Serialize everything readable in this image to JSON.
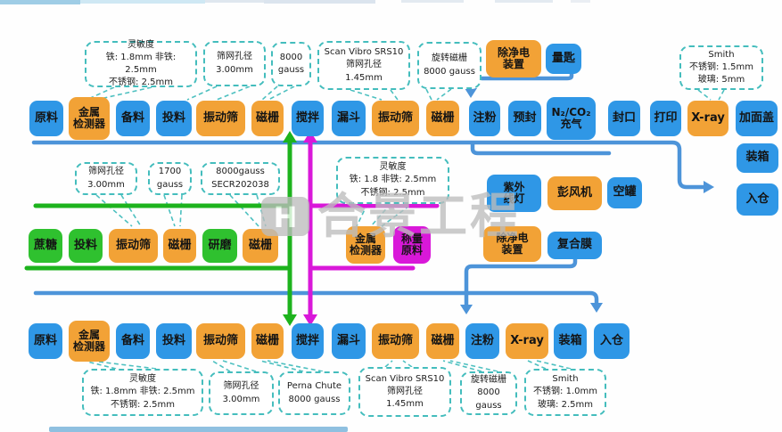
{
  "diagram_title": "",
  "colors": {
    "box_blue": "#2f97e6",
    "box_orange": "#f2a236",
    "box_green": "#2fc12f",
    "box_magenta": "#d918d9",
    "line_blue": "#4d94d9",
    "line_green": "#1db31d",
    "line_magenta": "#d918d9",
    "callout_teal": "#44bdbd",
    "watermark_gray": "#bdbdbd"
  },
  "flows": {
    "top": {
      "boxes": [
        {
          "label": "原料",
          "color": "blue"
        },
        {
          "label": "金属\n检测器",
          "color": "orange"
        },
        {
          "label": "备料",
          "color": "blue"
        },
        {
          "label": "投料",
          "color": "blue"
        },
        {
          "label": "振动筛",
          "color": "orange"
        },
        {
          "label": "磁栅",
          "color": "orange"
        },
        {
          "label": "搅拌",
          "color": "blue"
        },
        {
          "label": "漏斗",
          "color": "blue"
        },
        {
          "label": "振动筛",
          "color": "orange"
        },
        {
          "label": "磁栅",
          "color": "orange"
        },
        {
          "label": "注粉",
          "color": "blue"
        },
        {
          "label": "预封",
          "color": "blue"
        },
        {
          "label": "N₂/CO₂\n充气",
          "color": "blue"
        },
        {
          "label": "封口",
          "color": "blue"
        },
        {
          "label": "打印",
          "color": "blue"
        },
        {
          "label": "X-ray",
          "color": "orange"
        },
        {
          "label": "加面盖",
          "color": "blue"
        }
      ]
    },
    "right_column": {
      "boxes": [
        {
          "label": "装箱",
          "color": "blue"
        },
        {
          "label": "入仓",
          "color": "blue"
        }
      ]
    },
    "top_accessories": {
      "boxes": [
        {
          "label": "除净电\n装置",
          "color": "orange"
        },
        {
          "label": "量匙",
          "color": "blue"
        }
      ]
    },
    "middle": {
      "boxes": [
        {
          "label": "蔗糖",
          "color": "green"
        },
        {
          "label": "投料",
          "color": "green"
        },
        {
          "label": "振动筛",
          "color": "orange"
        },
        {
          "label": "磁栅",
          "color": "orange"
        },
        {
          "label": "研磨",
          "color": "green"
        },
        {
          "label": "磁栅",
          "color": "orange"
        },
        {
          "label": "金属\n检测器",
          "color": "orange"
        },
        {
          "label": "称量\n原料",
          "color": "magenta"
        }
      ]
    },
    "middle_right_top": {
      "boxes": [
        {
          "label": "紫外\n线灯",
          "color": "blue"
        },
        {
          "label": "彭风机",
          "color": "orange"
        },
        {
          "label": "空罐",
          "color": "blue"
        }
      ]
    },
    "middle_right_bottom": {
      "boxes": [
        {
          "label": "除净电\n装置",
          "color": "orange"
        },
        {
          "label": "复合膜",
          "color": "blue"
        }
      ]
    },
    "bottom": {
      "boxes": [
        {
          "label": "原料",
          "color": "blue"
        },
        {
          "label": "金属\n检测器",
          "color": "orange"
        },
        {
          "label": "备料",
          "color": "blue"
        },
        {
          "label": "投料",
          "color": "blue"
        },
        {
          "label": "振动筛",
          "color": "orange"
        },
        {
          "label": "磁栅",
          "color": "orange"
        },
        {
          "label": "搅拌",
          "color": "blue"
        },
        {
          "label": "漏斗",
          "color": "blue"
        },
        {
          "label": "振动筛",
          "color": "orange"
        },
        {
          "label": "磁栅",
          "color": "orange"
        },
        {
          "label": "注粉",
          "color": "blue"
        },
        {
          "label": "X-ray",
          "color": "orange"
        },
        {
          "label": "装箱",
          "color": "blue"
        },
        {
          "label": "入仓",
          "color": "blue"
        }
      ]
    }
  },
  "callouts": {
    "top": [
      {
        "text": "灵敏度\n铁: 1.8mm 非铁: 2.5mm\n不锈钢: 2.5mm"
      },
      {
        "text": "筛网孔径\n3.00mm"
      },
      {
        "text": "8000\ngauss"
      },
      {
        "text": "Scan Vibro SRS10\n筛网孔径\n1.45mm"
      },
      {
        "text": "旋转磁栅\n8000 gauss"
      },
      {
        "text": "Smith\n不锈钢: 1.5mm\n玻璃: 5mm"
      }
    ],
    "middle": [
      {
        "text": "筛网孔径\n3.00mm"
      },
      {
        "text": "1700\ngauss"
      },
      {
        "text": "8000gauss\nSECR202038"
      },
      {
        "text": "灵敏度\n铁: 1.8 非铁: 2.5mm\n不锈钢: 2.5mm"
      }
    ],
    "bottom": [
      {
        "text": "灵敏度\n铁: 1.8mm 非铁: 2.5mm\n不锈钢: 2.5mm"
      },
      {
        "text": "筛网孔径\n3.00mm"
      },
      {
        "text": "Perna Chute\n8000 gauss"
      },
      {
        "text": "Scan Vibro SRS10\n筛网孔径\n1.45mm"
      },
      {
        "text": "旋转磁栅\n8000 gauss"
      },
      {
        "text": "Smith\n不锈钢: 1.0mm\n玻璃: 2.5mm"
      }
    ]
  },
  "watermark": {
    "text": "合景工程",
    "logo_letter": "H"
  }
}
